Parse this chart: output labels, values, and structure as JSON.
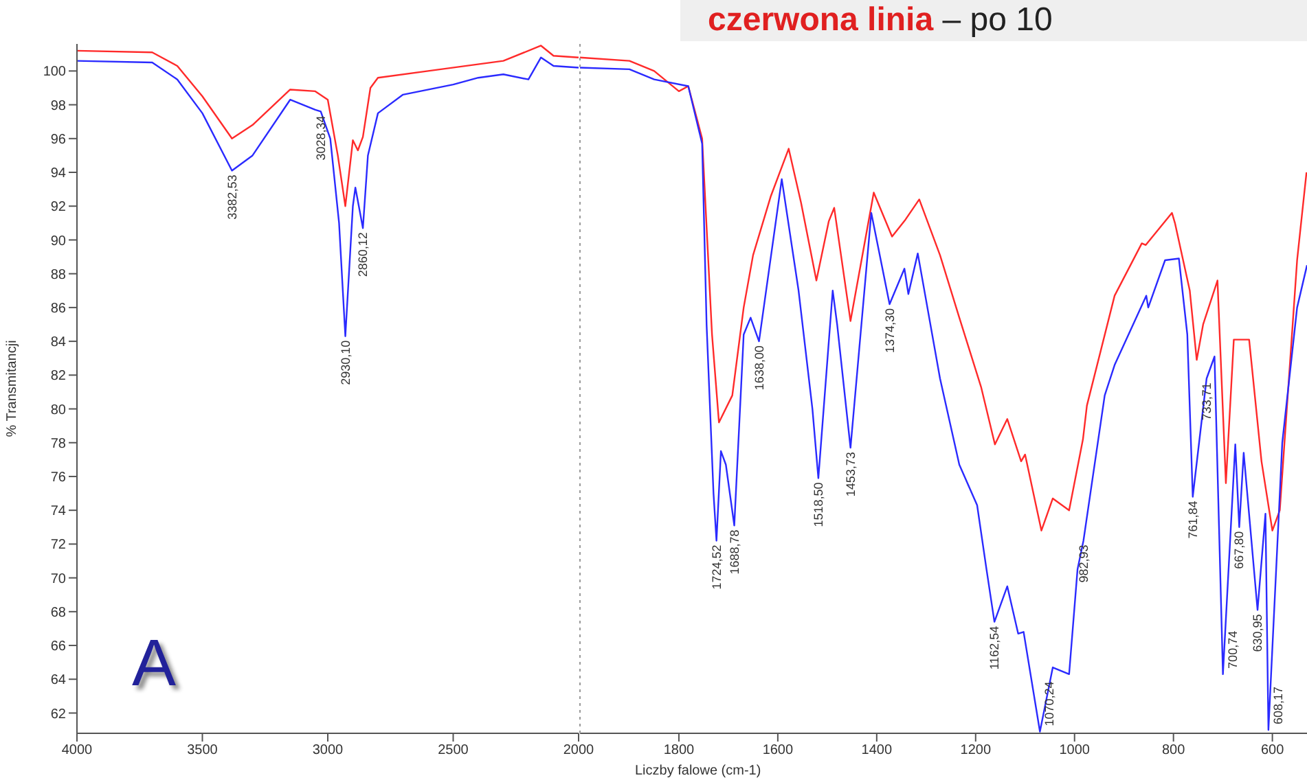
{
  "chart_data": [
    {
      "type": "line",
      "ylabel": "% Transmitancji",
      "xlim": [
        4000,
        2000
      ],
      "ylim": [
        60.8,
        101.6
      ],
      "xticks": [
        4000,
        3500,
        3000,
        2500,
        2000
      ],
      "yticks": [
        62,
        64,
        66,
        68,
        70,
        72,
        74,
        76,
        78,
        80,
        82,
        84,
        86,
        88,
        90,
        92,
        94,
        96,
        98,
        100
      ],
      "marker": "none",
      "line_style": "solid",
      "series": [
        {
          "color": "#ff2a2a",
          "x": [
            4000,
            3700,
            3600,
            3500,
            3382,
            3300,
            3150,
            3050,
            3000,
            2960,
            2930,
            2900,
            2880,
            2860,
            2830,
            2800,
            2600,
            2300,
            2150,
            2100,
            2000
          ],
          "values": [
            101.2,
            101.1,
            100.3,
            98.5,
            96.0,
            96.8,
            98.9,
            98.8,
            98.3,
            95.0,
            92.0,
            95.9,
            95.3,
            96.1,
            99.0,
            99.6,
            100.0,
            100.6,
            101.5,
            100.9,
            100.8
          ]
        },
        {
          "color": "#2a2aff",
          "x": [
            4000,
            3700,
            3600,
            3500,
            3382,
            3300,
            3150,
            3050,
            3028,
            2990,
            2955,
            2930,
            2900,
            2890,
            2870,
            2860,
            2840,
            2800,
            2700,
            2500,
            2400,
            2300,
            2200,
            2150,
            2100,
            2000
          ],
          "values": [
            100.6,
            100.5,
            99.5,
            97.5,
            94.1,
            95.0,
            98.3,
            97.7,
            97.6,
            96.0,
            91.0,
            84.3,
            92.0,
            93.1,
            91.5,
            90.7,
            95.0,
            97.5,
            98.6,
            99.2,
            99.6,
            99.8,
            99.5,
            100.8,
            100.3,
            100.2
          ]
        }
      ],
      "annotations": [
        {
          "text": "3382,53",
          "x": 3382,
          "y": 94.1
        },
        {
          "text": "3028,34",
          "x": 3028,
          "y": 97.6
        },
        {
          "text": "2930,10",
          "x": 2930,
          "y": 84.3
        },
        {
          "text": "2860,12",
          "x": 2860,
          "y": 90.7
        },
        "A"
      ]
    },
    {
      "type": "line",
      "xlabel": "Liczby falowe (cm-1)",
      "xlim": [
        2000,
        530
      ],
      "ylim": [
        60.8,
        101.6
      ],
      "xticks": [
        1800,
        1600,
        1400,
        1200,
        1000,
        800,
        600
      ],
      "tick_labels": "x",
      "marker": "none",
      "line_style": "solid",
      "series": [
        {
          "color": "#ff2a2a",
          "x": [
            2000,
            1900,
            1850,
            1800,
            1781,
            1753,
            1733,
            1719,
            1692,
            1669,
            1650,
            1614,
            1578,
            1553,
            1522,
            1497,
            1486,
            1453,
            1406,
            1369,
            1342,
            1314,
            1272,
            1233,
            1189,
            1161,
            1136,
            1108,
            1100,
            1067,
            1044,
            1011,
            983,
            975,
            919,
            864,
            856,
            803,
            797,
            767,
            753,
            740,
            711,
            694,
            678,
            647,
            622,
            600,
            585,
            550,
            531
          ],
          "values": [
            100.8,
            100.6,
            100.0,
            98.8,
            99.1,
            96.0,
            84.4,
            79.2,
            80.8,
            86.0,
            89.1,
            92.6,
            95.4,
            92.2,
            87.6,
            91.1,
            91.9,
            85.2,
            92.8,
            90.2,
            91.2,
            92.4,
            89.1,
            85.4,
            81.3,
            77.9,
            79.4,
            76.9,
            77.3,
            72.8,
            74.7,
            74.0,
            78.2,
            80.2,
            86.7,
            89.8,
            89.7,
            91.6,
            91.0,
            87.0,
            82.9,
            85.0,
            87.6,
            75.6,
            84.1,
            84.1,
            76.9,
            72.8,
            74.0,
            88.8,
            94.0
          ]
        },
        {
          "color": "#2a2aff",
          "x": [
            2000,
            1900,
            1850,
            1781,
            1753,
            1744,
            1730,
            1724,
            1715,
            1705,
            1688,
            1669,
            1655,
            1638,
            1592,
            1558,
            1530,
            1518,
            1489,
            1480,
            1453,
            1411,
            1374,
            1344,
            1336,
            1317,
            1272,
            1233,
            1197,
            1178,
            1162,
            1136,
            1114,
            1103,
            1070,
            1044,
            1011,
            994,
            982,
            939,
            919,
            855,
            851,
            817,
            789,
            772,
            761,
            733,
            717,
            700,
            675,
            667,
            658,
            630,
            614,
            608,
            580,
            550,
            530
          ],
          "values": [
            100.2,
            100.1,
            99.5,
            99.1,
            95.7,
            85.0,
            75.0,
            72.2,
            77.5,
            76.7,
            73.1,
            84.4,
            85.4,
            84.0,
            93.6,
            87.0,
            80.0,
            75.9,
            87.0,
            85.0,
            77.7,
            91.6,
            86.2,
            88.3,
            86.8,
            89.2,
            81.8,
            76.7,
            74.3,
            70.5,
            67.4,
            69.5,
            66.7,
            66.8,
            60.9,
            64.7,
            64.3,
            70.5,
            72.2,
            80.8,
            82.6,
            86.7,
            86.0,
            88.8,
            88.9,
            84.4,
            74.8,
            81.8,
            83.1,
            64.3,
            77.9,
            73.0,
            77.4,
            68.1,
            73.8,
            61.0,
            78.0,
            86.0,
            88.5
          ]
        }
      ],
      "annotations": [
        {
          "text": "1724,52",
          "x": 1724,
          "y": 72.2
        },
        {
          "text": "1688,78",
          "x": 1688,
          "y": 73.1
        },
        {
          "text": "1638,00",
          "x": 1638,
          "y": 84.0
        },
        {
          "text": "1518,50",
          "x": 1518,
          "y": 75.9
        },
        {
          "text": "1453,73",
          "x": 1453,
          "y": 77.7
        },
        {
          "text": "1374,30",
          "x": 1374,
          "y": 86.2
        },
        {
          "text": "1162,54",
          "x": 1162,
          "y": 67.4
        },
        {
          "text": "1070,24",
          "x": 1070,
          "y": 60.9
        },
        {
          "text": "982,93",
          "x": 982,
          "y": 72.2
        },
        {
          "text": "761,84",
          "x": 761,
          "y": 74.8
        },
        {
          "text": "733,71",
          "x": 733,
          "y": 81.8
        },
        {
          "text": "700,74",
          "x": 700,
          "y": 64.3
        },
        {
          "text": "667,80",
          "x": 667,
          "y": 73.0
        },
        {
          "text": "630,95",
          "x": 630,
          "y": 68.1
        },
        {
          "text": "608,17",
          "x": 608,
          "y": 61.0
        },
        "czerwona linia",
        "– po 10"
      ]
    }
  ]
}
